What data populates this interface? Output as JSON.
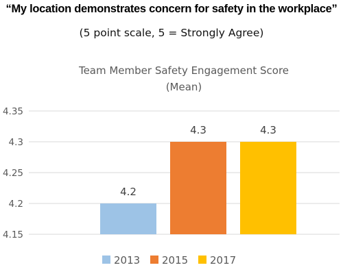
{
  "header": {
    "headline": "“My location demonstrates concern for safety in the workplace”",
    "subheadline": "(5 point scale, 5 = Strongly Agree)"
  },
  "chart_data": {
    "type": "bar",
    "title": "Team Member Safety Engagement Score",
    "subtitle": "(Mean)",
    "categories": [
      "2013",
      "2015",
      "2017"
    ],
    "values": [
      4.2,
      4.3,
      4.3
    ],
    "data_labels": [
      "4.2",
      "4.3",
      "4.3"
    ],
    "colors": [
      "#9DC3E6",
      "#ED7D31",
      "#FFC000"
    ],
    "ylim": [
      4.15,
      4.35
    ],
    "yticks": [
      "4.15",
      "4.2",
      "4.25",
      "4.3",
      "4.35"
    ],
    "grid": true,
    "legend_position": "bottom",
    "xlabel": "",
    "ylabel": ""
  }
}
